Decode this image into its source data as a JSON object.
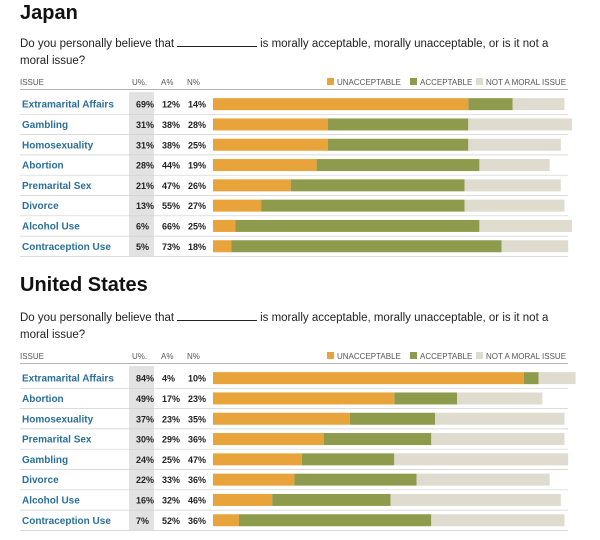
{
  "colors": {
    "unacceptable": "#e8a33a",
    "acceptable": "#8f9b4c",
    "not_moral": "#dfdbcf",
    "label": "#2a6f9b",
    "u_col_bg": "#e2e2e2",
    "row_rule": "#cfcfcf"
  },
  "header": {
    "issue": "ISSUE",
    "u_pct": "U%.",
    "a_pct": "A%",
    "n_pct": "N%"
  },
  "legend": {
    "unacceptable": "UNACCEPTABLE",
    "acceptable": "ACCEPTABLE",
    "not_moral": "NOT A MORAL ISSUE"
  },
  "panels": [
    {
      "title": "Japan",
      "question_before": "Do you personally believe that",
      "question_after": "is morally acceptable, morally unacceptable, or is it not a moral issue?"
    },
    {
      "title": "United States",
      "question_before": "Do you personally believe that",
      "question_after": "is morally acceptable, morally unacceptable, or is it not a moral issue?"
    }
  ],
  "chart_data": [
    {
      "type": "bar",
      "orientation": "horizontal",
      "stacked": true,
      "title": "Japan",
      "categories": [
        "Extramarital Affairs",
        "Gambling",
        "Homosexuality",
        "Abortion",
        "Premarital Sex",
        "Divorce",
        "Alcohol Use",
        "Contraception Use"
      ],
      "series": [
        {
          "name": "UNACCEPTABLE",
          "values": [
            69,
            31,
            31,
            28,
            21,
            13,
            6,
            5
          ]
        },
        {
          "name": "ACCEPTABLE",
          "values": [
            12,
            38,
            38,
            44,
            47,
            55,
            66,
            73
          ]
        },
        {
          "name": "NOT A MORAL ISSUE",
          "values": [
            14,
            28,
            25,
            19,
            26,
            27,
            25,
            18
          ]
        }
      ],
      "legend": "top-right"
    },
    {
      "type": "bar",
      "orientation": "horizontal",
      "stacked": true,
      "title": "United States",
      "categories": [
        "Extramarital Affairs",
        "Abortion",
        "Homosexuality",
        "Premarital Sex",
        "Gambling",
        "Divorce",
        "Alcohol Use",
        "Contraception Use"
      ],
      "series": [
        {
          "name": "UNACCEPTABLE",
          "values": [
            84,
            49,
            37,
            30,
            24,
            22,
            16,
            7
          ]
        },
        {
          "name": "ACCEPTABLE",
          "values": [
            4,
            17,
            23,
            29,
            25,
            33,
            32,
            52
          ]
        },
        {
          "name": "NOT A MORAL ISSUE",
          "values": [
            10,
            23,
            35,
            36,
            47,
            36,
            46,
            36
          ]
        }
      ],
      "legend": "top-right"
    }
  ]
}
